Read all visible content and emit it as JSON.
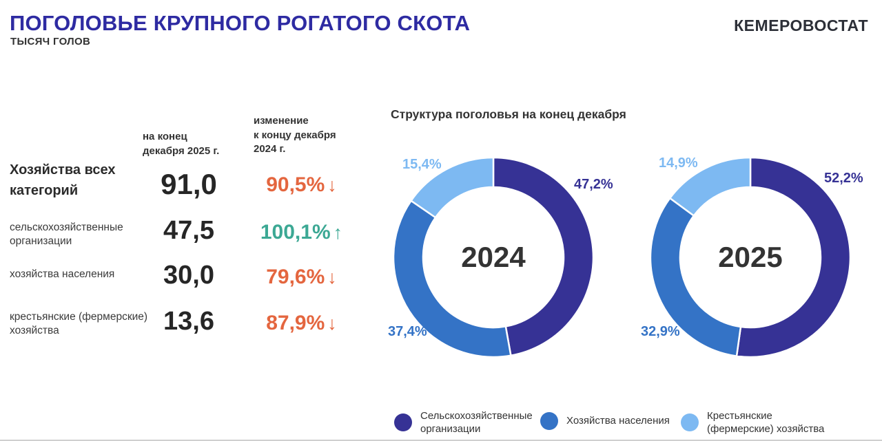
{
  "header": {
    "title": "ПОГОЛОВЬЕ КРУПНОГО РОГАТОГО СКОТА",
    "subtitle": "тысяч голов",
    "logo": "КЕМЕРОВОСТАТ"
  },
  "colors": {
    "title_accent": "#2E2BA2",
    "up": "#3CA894",
    "down": "#E4663F",
    "dark_blue": "#363295",
    "mid_blue": "#3473C6",
    "light_blue": "#7DB9F2"
  },
  "table": {
    "col1_header": "на конец\nдекабря 2025 г.",
    "col2_header": "изменение\nк концу декабря\n2024 г.",
    "rows": [
      {
        "label": "Хозяйства всех\nкатегорий",
        "value": "91,0",
        "change": "90,5%",
        "arrow": "↓",
        "dir": "down"
      },
      {
        "label": "сельскохозяйственные\nорганизации",
        "value": "47,5",
        "change": "100,1%",
        "arrow": "↑",
        "dir": "up"
      },
      {
        "label": "хозяйства населения",
        "value": "30,0",
        "change": "79,6%",
        "arrow": "↓",
        "dir": "down"
      },
      {
        "label": "крестьянские (фермерские)\nхозяйства",
        "value": "13,6",
        "change": "87,9%",
        "arrow": "↓",
        "dir": "down"
      }
    ]
  },
  "chart_data": {
    "type": "pie",
    "subtype": "donut",
    "title": "Структура поголовья на конец декабря",
    "unit": "%",
    "categories": [
      "Сельскохозяйственные организации",
      "Хозяйства населения",
      "Крестьянские (фермерские) хозяйства"
    ],
    "colors": [
      "#363295",
      "#3473C6",
      "#7DB9F2"
    ],
    "charts": [
      {
        "year": "2024",
        "values": [
          47.2,
          37.4,
          15.4
        ],
        "labels": [
          "47,2%",
          "37,4%",
          "15,4%"
        ]
      },
      {
        "year": "2025",
        "values": [
          52.2,
          32.9,
          14.9
        ],
        "labels": [
          "52,2%",
          "32,9%",
          "14,9%"
        ]
      }
    ],
    "legend_position": "bottom",
    "legend": [
      {
        "label": "Сельскохозяйственные\nорганизации"
      },
      {
        "label": "Хозяйства населения"
      },
      {
        "label": "Крестьянские\n(фермерские) хозяйства"
      }
    ]
  }
}
